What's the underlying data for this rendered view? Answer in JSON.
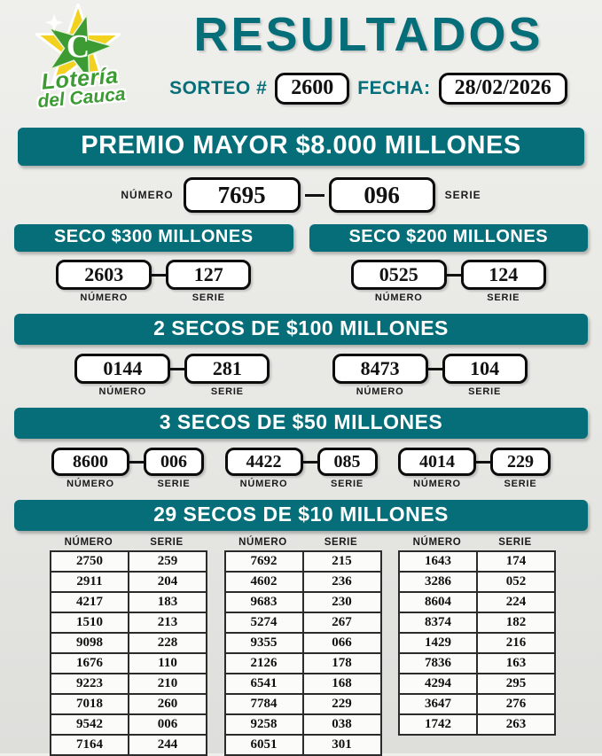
{
  "colors": {
    "accent": "#056e78",
    "box_border": "#0c0c0c"
  },
  "logo": {
    "line1": "Lotería",
    "line2": "del Cauca",
    "letter": "C"
  },
  "header": {
    "title": "RESULTADOS",
    "sorteo_label": "SORTEO #",
    "sorteo_value": "2600",
    "fecha_label": "FECHA:",
    "fecha_value": "28/02/2026"
  },
  "labels": {
    "numero": "NÚMERO",
    "serie": "SERIE"
  },
  "premio_mayor": {
    "banner": "PREMIO MAYOR $8.000 MILLONES",
    "numero": "7695",
    "serie": "096"
  },
  "seco_300": {
    "banner": "SECO $300 MILLONES",
    "numero": "2603",
    "serie": "127"
  },
  "seco_200": {
    "banner": "SECO $200 MILLONES",
    "numero": "0525",
    "serie": "124"
  },
  "secos_100": {
    "banner": "2 SECOS DE $100 MILLONES",
    "items": [
      {
        "numero": "0144",
        "serie": "281"
      },
      {
        "numero": "8473",
        "serie": "104"
      }
    ]
  },
  "secos_50": {
    "banner": "3 SECOS DE $50 MILLONES",
    "items": [
      {
        "numero": "8600",
        "serie": "006"
      },
      {
        "numero": "4422",
        "serie": "085"
      },
      {
        "numero": "4014",
        "serie": "229"
      }
    ]
  },
  "secos_10": {
    "banner": "29 SECOS DE $10 MILLONES",
    "tables": [
      {
        "rows": [
          [
            "2750",
            "259"
          ],
          [
            "2911",
            "204"
          ],
          [
            "4217",
            "183"
          ],
          [
            "1510",
            "213"
          ],
          [
            "9098",
            "228"
          ],
          [
            "1676",
            "110"
          ],
          [
            "9223",
            "210"
          ],
          [
            "7018",
            "260"
          ],
          [
            "9542",
            "006"
          ],
          [
            "7164",
            "244"
          ]
        ]
      },
      {
        "rows": [
          [
            "7692",
            "215"
          ],
          [
            "4602",
            "236"
          ],
          [
            "9683",
            "230"
          ],
          [
            "5274",
            "267"
          ],
          [
            "9355",
            "066"
          ],
          [
            "2126",
            "178"
          ],
          [
            "6541",
            "168"
          ],
          [
            "7784",
            "229"
          ],
          [
            "9258",
            "038"
          ],
          [
            "6051",
            "301"
          ]
        ]
      },
      {
        "rows": [
          [
            "1643",
            "174"
          ],
          [
            "3286",
            "052"
          ],
          [
            "8604",
            "224"
          ],
          [
            "8374",
            "182"
          ],
          [
            "1429",
            "216"
          ],
          [
            "7836",
            "163"
          ],
          [
            "4294",
            "295"
          ],
          [
            "3647",
            "276"
          ],
          [
            "1742",
            "263"
          ]
        ]
      }
    ]
  }
}
